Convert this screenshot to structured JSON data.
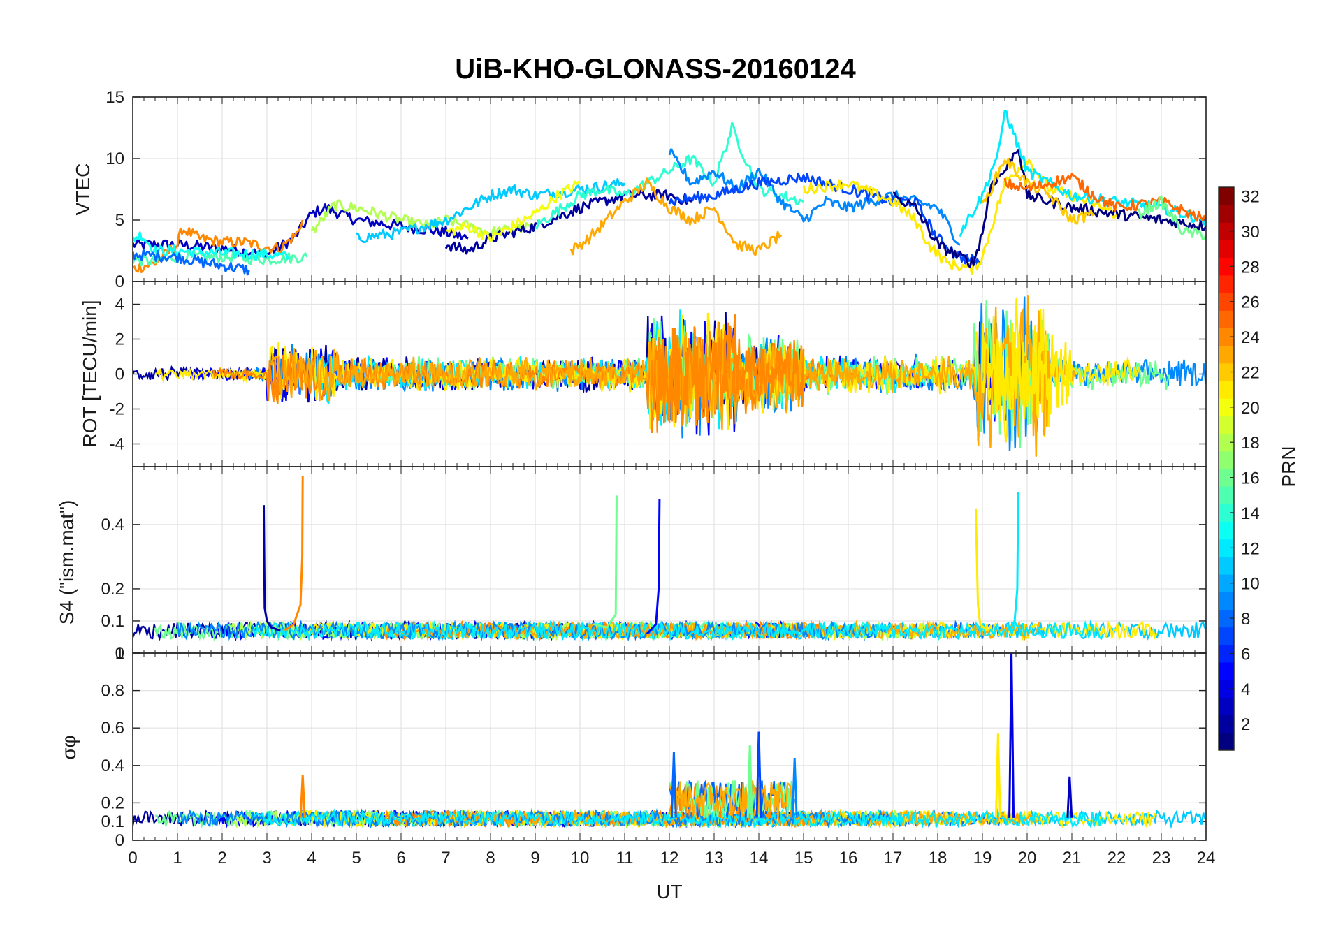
{
  "title": "UiB-KHO-GLONASS-20160124",
  "chart_data": [
    {
      "type": "line",
      "panel": "VTEC",
      "ylabel": "VTEC",
      "ylim": [
        0,
        15
      ],
      "yticks": [
        "0",
        "5",
        "10",
        "15"
      ],
      "xlim": [
        0,
        24
      ],
      "grid": true,
      "series": [
        {
          "prn": 3,
          "x": [
            0.0,
            1.0,
            2.0,
            3.0,
            3.6,
            4.0,
            4.3,
            5.0,
            6.0,
            7.0,
            7.5
          ],
          "y": [
            3.0,
            3.0,
            2.7,
            2.2,
            3.5,
            5.5,
            6.0,
            5.0,
            4.5,
            4.0,
            3.5
          ]
        },
        {
          "prn": 24,
          "x": [
            0.0,
            0.5,
            1.0,
            1.1,
            1.5,
            2.0,
            2.5,
            3.0,
            3.3,
            3.7,
            3.8
          ],
          "y": [
            1.0,
            1.5,
            3.0,
            4.3,
            3.5,
            3.2,
            3.2,
            2.8,
            2.7,
            4.0,
            5.0
          ]
        },
        {
          "prn": 15,
          "x": [
            0.0,
            0.5,
            1.0,
            2.0,
            3.0,
            3.9
          ],
          "y": [
            1.8,
            1.6,
            2.0,
            2.0,
            1.8,
            2.0
          ]
        },
        {
          "prn": 13,
          "x": [
            0.0,
            0.2,
            0.5,
            1.0,
            2.0,
            3.0,
            3.5
          ],
          "y": [
            3.5,
            3.8,
            2.5,
            2.5,
            2.3,
            2.2,
            2.0
          ]
        },
        {
          "prn": 8,
          "x": [
            0.0,
            1.0,
            1.5,
            2.0,
            2.5,
            2.6
          ],
          "y": [
            2.2,
            2.0,
            1.6,
            1.3,
            1.0,
            0.9
          ]
        },
        {
          "prn": 18,
          "x": [
            4.0,
            4.5,
            5.0,
            6.0,
            6.6,
            7.0,
            8.0,
            9.0
          ],
          "y": [
            4.0,
            6.2,
            6.0,
            5.0,
            4.5,
            5.0,
            4.0,
            4.5
          ]
        },
        {
          "prn": 11,
          "x": [
            5.0,
            6.0,
            7.0,
            8.0,
            8.5,
            9.0,
            10.0,
            11.0
          ],
          "y": [
            3.5,
            4.0,
            5.0,
            7.0,
            7.5,
            7.0,
            7.5,
            8.0
          ]
        },
        {
          "prn": 2,
          "x": [
            7.0,
            7.5,
            8.0,
            9.0,
            10.0,
            11.0,
            12.0,
            12.5
          ],
          "y": [
            3.0,
            2.5,
            3.5,
            4.5,
            6.0,
            7.0,
            7.0,
            6.5
          ]
        },
        {
          "prn": 20,
          "x": [
            7.0,
            7.5,
            8.0,
            8.5,
            9.0,
            9.5,
            10.0
          ],
          "y": [
            4.0,
            4.5,
            3.5,
            4.5,
            5.5,
            7.0,
            8.0
          ]
        },
        {
          "prn": 14,
          "x": [
            9.0,
            10.0,
            10.5,
            11.0,
            12.0,
            12.5,
            13.0,
            13.4,
            14.0,
            15.0
          ],
          "y": [
            4.5,
            7.0,
            7.5,
            7.0,
            9.0,
            10.0,
            8.0,
            12.5,
            7.5,
            6.5
          ]
        },
        {
          "prn": 23,
          "x": [
            9.8,
            10.2,
            10.6,
            11.0,
            11.5,
            12.0,
            12.5,
            13.0,
            13.5,
            14.0,
            14.5
          ],
          "y": [
            2.5,
            3.5,
            5.0,
            6.5,
            8.0,
            6.0,
            5.0,
            6.0,
            3.0,
            2.5,
            3.8
          ]
        },
        {
          "prn": 9,
          "x": [
            12.0,
            12.5,
            13.0,
            13.5,
            14.0,
            14.5,
            15.0,
            15.5,
            16.0,
            16.5,
            17.0,
            18.0,
            18.5
          ],
          "y": [
            10.5,
            8.0,
            9.0,
            7.5,
            9.0,
            6.5,
            5.0,
            6.5,
            6.0,
            6.5,
            7.0,
            6.0,
            3.0
          ]
        },
        {
          "prn": 7,
          "x": [
            12.0,
            13.0,
            14.0,
            15.0,
            16.0,
            17.0,
            17.5,
            18.0,
            18.5,
            19.0
          ],
          "y": [
            6.5,
            7.0,
            8.0,
            8.5,
            7.5,
            6.5,
            6.5,
            3.5,
            2.0,
            1.5
          ]
        },
        {
          "prn": 21,
          "x": [
            15.0,
            16.0,
            17.0,
            17.5,
            17.8,
            18.2,
            18.8,
            19.0,
            19.5,
            20.0,
            20.5,
            21.0,
            22.0
          ],
          "y": [
            7.5,
            8.0,
            6.5,
            5.0,
            3.0,
            1.5,
            1.0,
            2.0,
            8.0,
            10.0,
            7.5,
            7.0,
            5.5
          ]
        },
        {
          "prn": 1,
          "x": [
            17.0,
            17.5,
            18.0,
            18.5,
            18.8,
            19.0,
            19.2,
            19.5,
            19.8,
            20.0,
            21.0,
            22.0,
            23.0,
            24.0
          ],
          "y": [
            7.0,
            6.0,
            3.0,
            2.0,
            1.5,
            4.0,
            8.0,
            9.0,
            11.0,
            7.0,
            6.0,
            5.5,
            5.0,
            4.5
          ]
        },
        {
          "prn": 12,
          "x": [
            18.5,
            19.0,
            19.4,
            19.5,
            20.0,
            21.0,
            22.0,
            23.0,
            23.5,
            24.0
          ],
          "y": [
            4.0,
            7.0,
            11.0,
            14.0,
            9.0,
            7.0,
            6.5,
            6.0,
            5.5,
            5.0
          ]
        },
        {
          "prn": 22,
          "x": [
            19.0,
            19.5,
            20.0,
            20.5,
            21.0,
            21.5
          ],
          "y": [
            6.0,
            10.0,
            8.0,
            7.0,
            5.0,
            5.5
          ]
        },
        {
          "prn": 25,
          "x": [
            19.5,
            20.0,
            21.0,
            21.5,
            22.0,
            23.0,
            24.0
          ],
          "y": [
            8.0,
            7.5,
            8.5,
            7.0,
            6.0,
            6.5,
            5.0
          ]
        },
        {
          "prn": 16,
          "x": [
            22.5,
            23.0,
            23.5,
            24.0
          ],
          "y": [
            5.5,
            6.5,
            4.0,
            3.8
          ]
        }
      ]
    },
    {
      "type": "line",
      "panel": "ROT",
      "ylabel": "ROT [TECU/min]",
      "ylim": [
        -5.3,
        5.3
      ],
      "yticks": [
        "-4",
        "-2",
        "0",
        "2",
        "4"
      ],
      "xlim": [
        0,
        24
      ],
      "grid": true,
      "activity": [
        {
          "t": [
            0,
            3
          ],
          "amp": 0.35
        },
        {
          "t": [
            3,
            4.6
          ],
          "amp": 1.6
        },
        {
          "t": [
            4.6,
            11.5
          ],
          "amp": 0.9
        },
        {
          "t": [
            11.5,
            13.5
          ],
          "amp": 3.2
        },
        {
          "t": [
            13.5,
            15
          ],
          "amp": 2.0
        },
        {
          "t": [
            15,
            18.8
          ],
          "amp": 1.0
        },
        {
          "t": [
            18.8,
            20.5
          ],
          "amp": 4.5
        },
        {
          "t": [
            20.5,
            24
          ],
          "amp": 0.8
        }
      ]
    },
    {
      "type": "line",
      "panel": "S4",
      "ylabel": "S4 (\"ism.mat\")",
      "ylim": [
        0,
        0.58
      ],
      "yticks": [
        "0",
        "0.1",
        "0.2",
        "0.4"
      ],
      "xlim": [
        0,
        24
      ],
      "grid": true,
      "baseline": 0.06,
      "spikes": [
        {
          "prn": 2,
          "x": [
            2.93,
            2.95,
            3.0,
            3.1,
            3.3
          ],
          "y": [
            0.46,
            0.14,
            0.1,
            0.08,
            0.07
          ]
        },
        {
          "prn": 24,
          "x": [
            3.4,
            3.6,
            3.75,
            3.79,
            3.8
          ],
          "y": [
            0.07,
            0.09,
            0.15,
            0.3,
            0.55
          ]
        },
        {
          "prn": 16,
          "x": [
            10.3,
            10.6,
            10.8,
            10.82
          ],
          "y": [
            0.09,
            0.08,
            0.12,
            0.49
          ]
        },
        {
          "prn": 5,
          "x": [
            11.5,
            11.7,
            11.76,
            11.78
          ],
          "y": [
            0.06,
            0.09,
            0.2,
            0.48
          ]
        },
        {
          "prn": 21,
          "x": [
            18.85,
            18.9,
            18.95,
            19.1
          ],
          "y": [
            0.45,
            0.15,
            0.09,
            0.07
          ]
        },
        {
          "prn": 12,
          "x": [
            19.6,
            19.72,
            19.78,
            19.8
          ],
          "y": [
            0.07,
            0.1,
            0.2,
            0.5
          ]
        }
      ]
    },
    {
      "type": "line",
      "panel": "sigma_phi",
      "ylabel": "σφ",
      "ylim": [
        0,
        1
      ],
      "yticks": [
        "0",
        "0.1",
        "0.2",
        "0.4",
        "0.6",
        "0.8",
        "1"
      ],
      "xlim": [
        0,
        24
      ],
      "xticks": [
        "0",
        "1",
        "2",
        "3",
        "4",
        "5",
        "6",
        "7",
        "8",
        "9",
        "10",
        "11",
        "12",
        "13",
        "14",
        "15",
        "16",
        "17",
        "18",
        "19",
        "20",
        "21",
        "22",
        "23",
        "24"
      ],
      "xlabel": "UT",
      "grid": true,
      "baseline": 0.1,
      "spikes": [
        {
          "prn": 24,
          "x": 3.8,
          "y": 0.35
        },
        {
          "prn": 8,
          "x": 12.1,
          "y": 0.47
        },
        {
          "prn": 7,
          "x": 14.0,
          "y": 0.58
        },
        {
          "prn": 16,
          "x": 13.8,
          "y": 0.51
        },
        {
          "prn": 9,
          "x": 14.8,
          "y": 0.44
        },
        {
          "prn": 21,
          "x": 19.35,
          "y": 0.57
        },
        {
          "prn": 4,
          "x": 19.65,
          "y": 1.0
        },
        {
          "prn": 3,
          "x": 20.95,
          "y": 0.34
        }
      ]
    }
  ],
  "colorbar": {
    "label": "PRN",
    "min": 1,
    "max": 32,
    "ticks": [
      "2",
      "4",
      "6",
      "8",
      "10",
      "12",
      "14",
      "16",
      "18",
      "20",
      "22",
      "24",
      "26",
      "28",
      "30",
      "32"
    ],
    "colormap": "jet"
  }
}
